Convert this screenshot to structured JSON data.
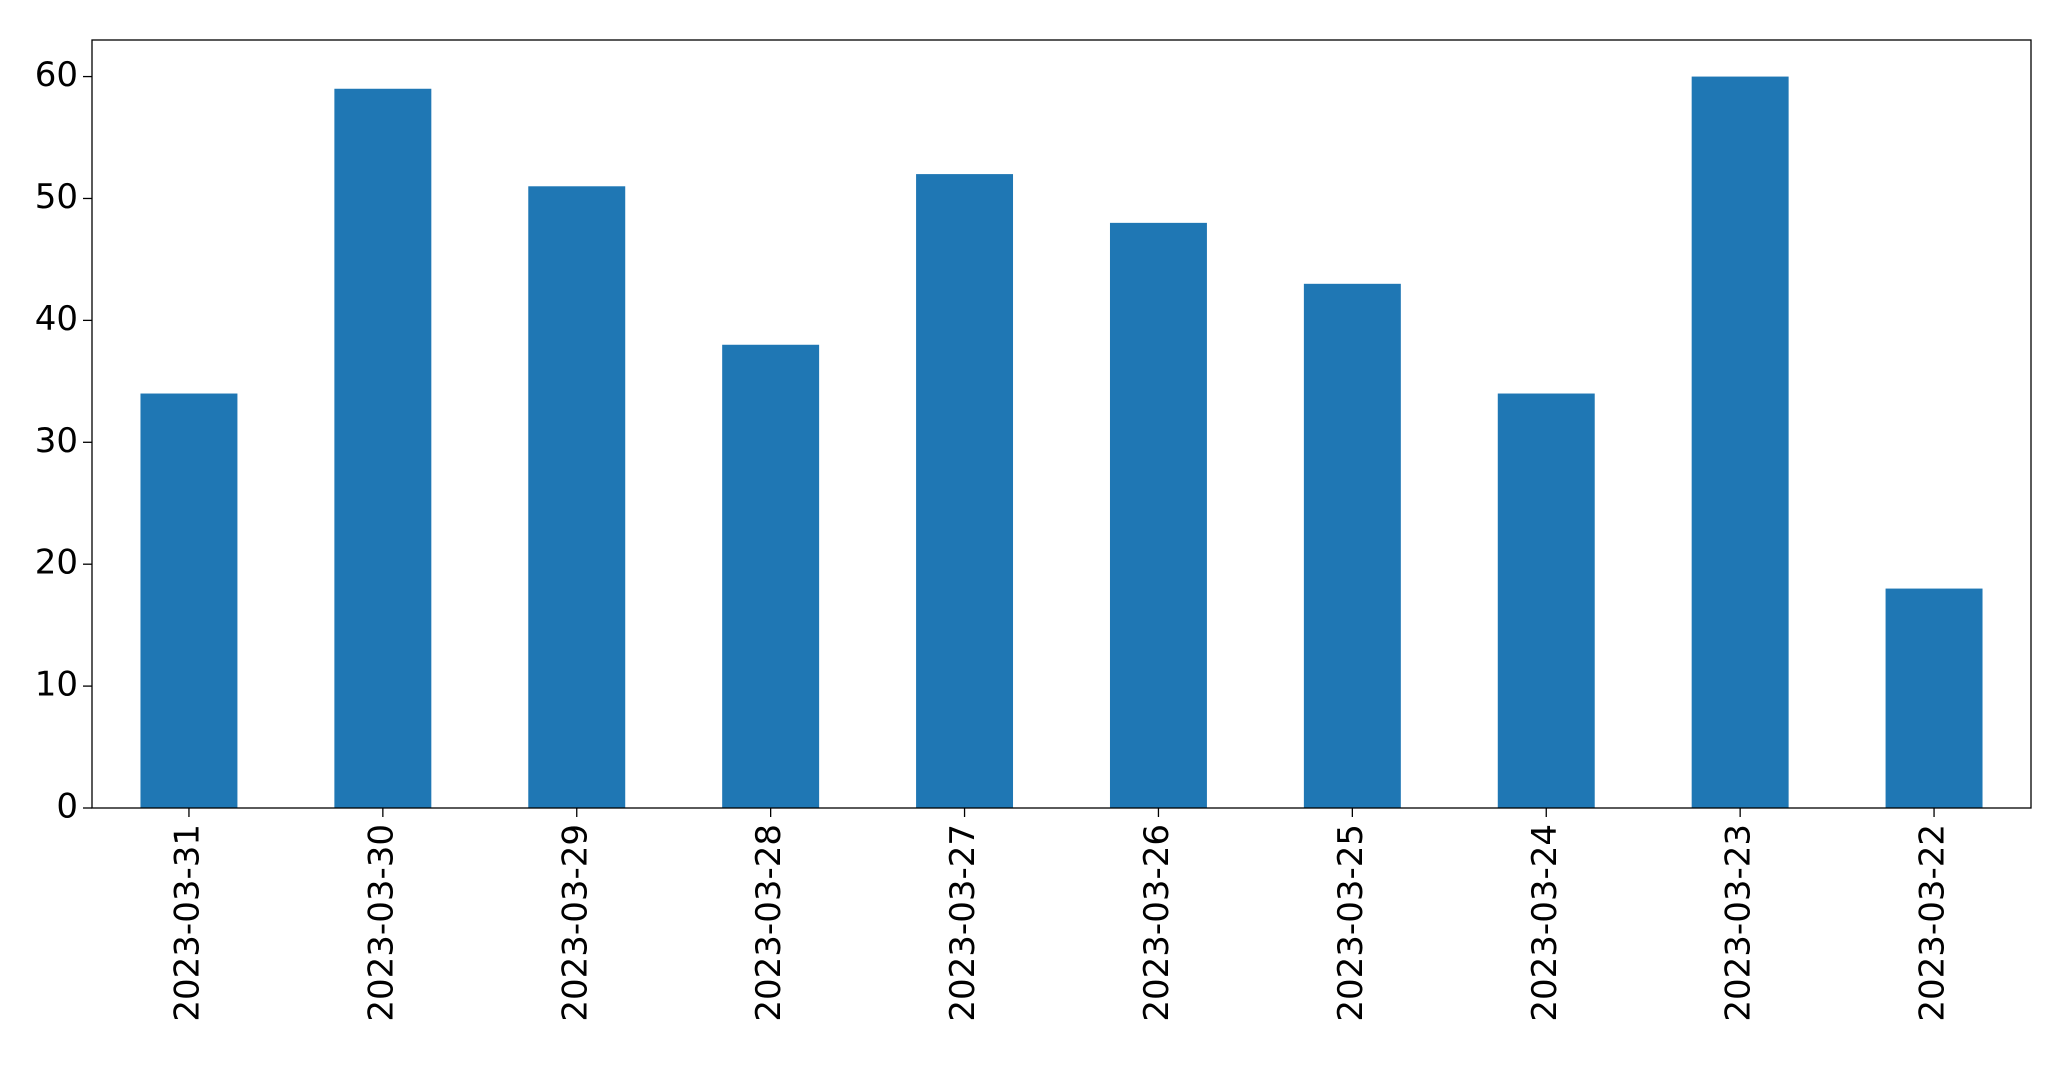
{
  "chart_data": {
    "type": "bar",
    "categories": [
      "2023-03-31",
      "2023-03-30",
      "2023-03-29",
      "2023-03-28",
      "2023-03-27",
      "2023-03-26",
      "2023-03-25",
      "2023-03-24",
      "2023-03-23",
      "2023-03-22"
    ],
    "values": [
      34,
      59,
      51,
      38,
      52,
      48,
      43,
      34,
      60,
      18
    ],
    "color": "#1f77b4",
    "ylim": [
      0,
      63
    ],
    "yticks": [
      0,
      10,
      20,
      30,
      40,
      50,
      60
    ],
    "grid": false
  }
}
